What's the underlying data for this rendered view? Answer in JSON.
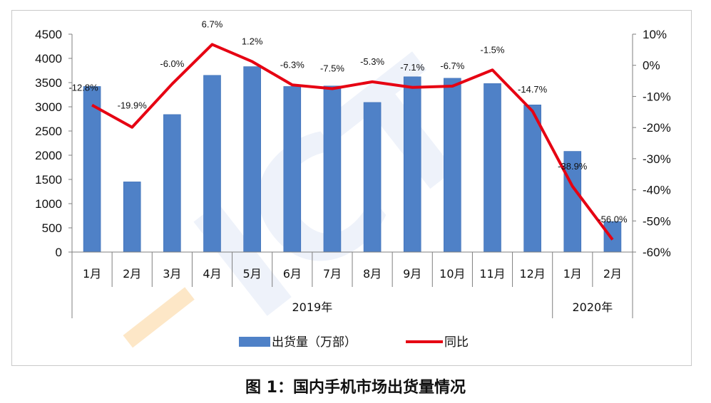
{
  "caption": "图 1：国内手机市场出货量情况",
  "colors": {
    "bar": "#4f81c7",
    "bar_edge": "#3a6db5",
    "line": "#e60012",
    "axis": "#7f7f7f",
    "watermark": "#e8eef8",
    "watermark_accent": "#fde7c7"
  },
  "chart_data": {
    "type": "bar+line",
    "categories": [
      "1月",
      "2月",
      "3月",
      "4月",
      "5月",
      "6月",
      "7月",
      "8月",
      "9月",
      "10月",
      "11月",
      "12月",
      "1月",
      "2月"
    ],
    "groups": [
      {
        "label": "2019年",
        "span": 12
      },
      {
        "label": "2020年",
        "span": 2
      }
    ],
    "series": [
      {
        "name": "出货量（万部）",
        "type": "bar",
        "axis": "left",
        "values": [
          3420,
          1450,
          2840,
          3650,
          3830,
          3420,
          3430,
          3090,
          3620,
          3590,
          3480,
          3040,
          2080,
          630
        ]
      },
      {
        "name": "同比",
        "type": "line",
        "axis": "right",
        "values": [
          -12.8,
          -19.9,
          -6.0,
          6.7,
          1.2,
          -6.3,
          -7.5,
          -5.3,
          -7.1,
          -6.7,
          -1.5,
          -14.7,
          -38.9,
          -56.0
        ],
        "labels": [
          "-12.8%",
          "-19.9%",
          "-6.0%",
          "6.7%",
          "1.2%",
          "-6.3%",
          "-7.5%",
          "-5.3%",
          "-7.1%",
          "-6.7%",
          "-1.5%",
          "-14.7%",
          "-38.9%",
          "-56.0%"
        ]
      }
    ],
    "y_left": {
      "min": 0,
      "max": 4500,
      "step": 500,
      "ticks": [
        "0",
        "500",
        "1000",
        "1500",
        "2000",
        "2500",
        "3000",
        "3500",
        "4000",
        "4500"
      ]
    },
    "y_right": {
      "min": -60,
      "max": 10,
      "step": 10,
      "ticks": [
        "-60%",
        "-50%",
        "-40%",
        "-30%",
        "-20%",
        "-10%",
        "0%",
        "10%"
      ]
    },
    "grid": false,
    "legend_position": "bottom-center"
  }
}
